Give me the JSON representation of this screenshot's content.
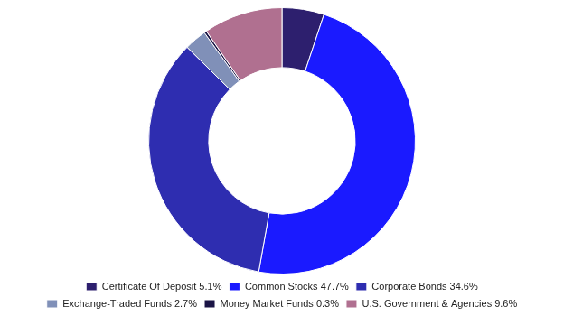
{
  "chart_data": {
    "type": "doughnut",
    "categories": [
      "Certificate Of Deposit 5.1%",
      "Common Stocks 47.7%",
      "Corporate Bonds 34.6%",
      "Exchange-Traded Funds 2.7%",
      "Money Market Funds 0.3%",
      "U.S. Government & Agencies 9.6%"
    ],
    "values": [
      5.1,
      47.7,
      34.6,
      2.7,
      0.3,
      9.6
    ],
    "colors": [
      "#2d1f6e",
      "#1a1aff",
      "#2e2db0",
      "#8090b8",
      "#1a1445",
      "#b07090"
    ],
    "legend": "bottom"
  }
}
